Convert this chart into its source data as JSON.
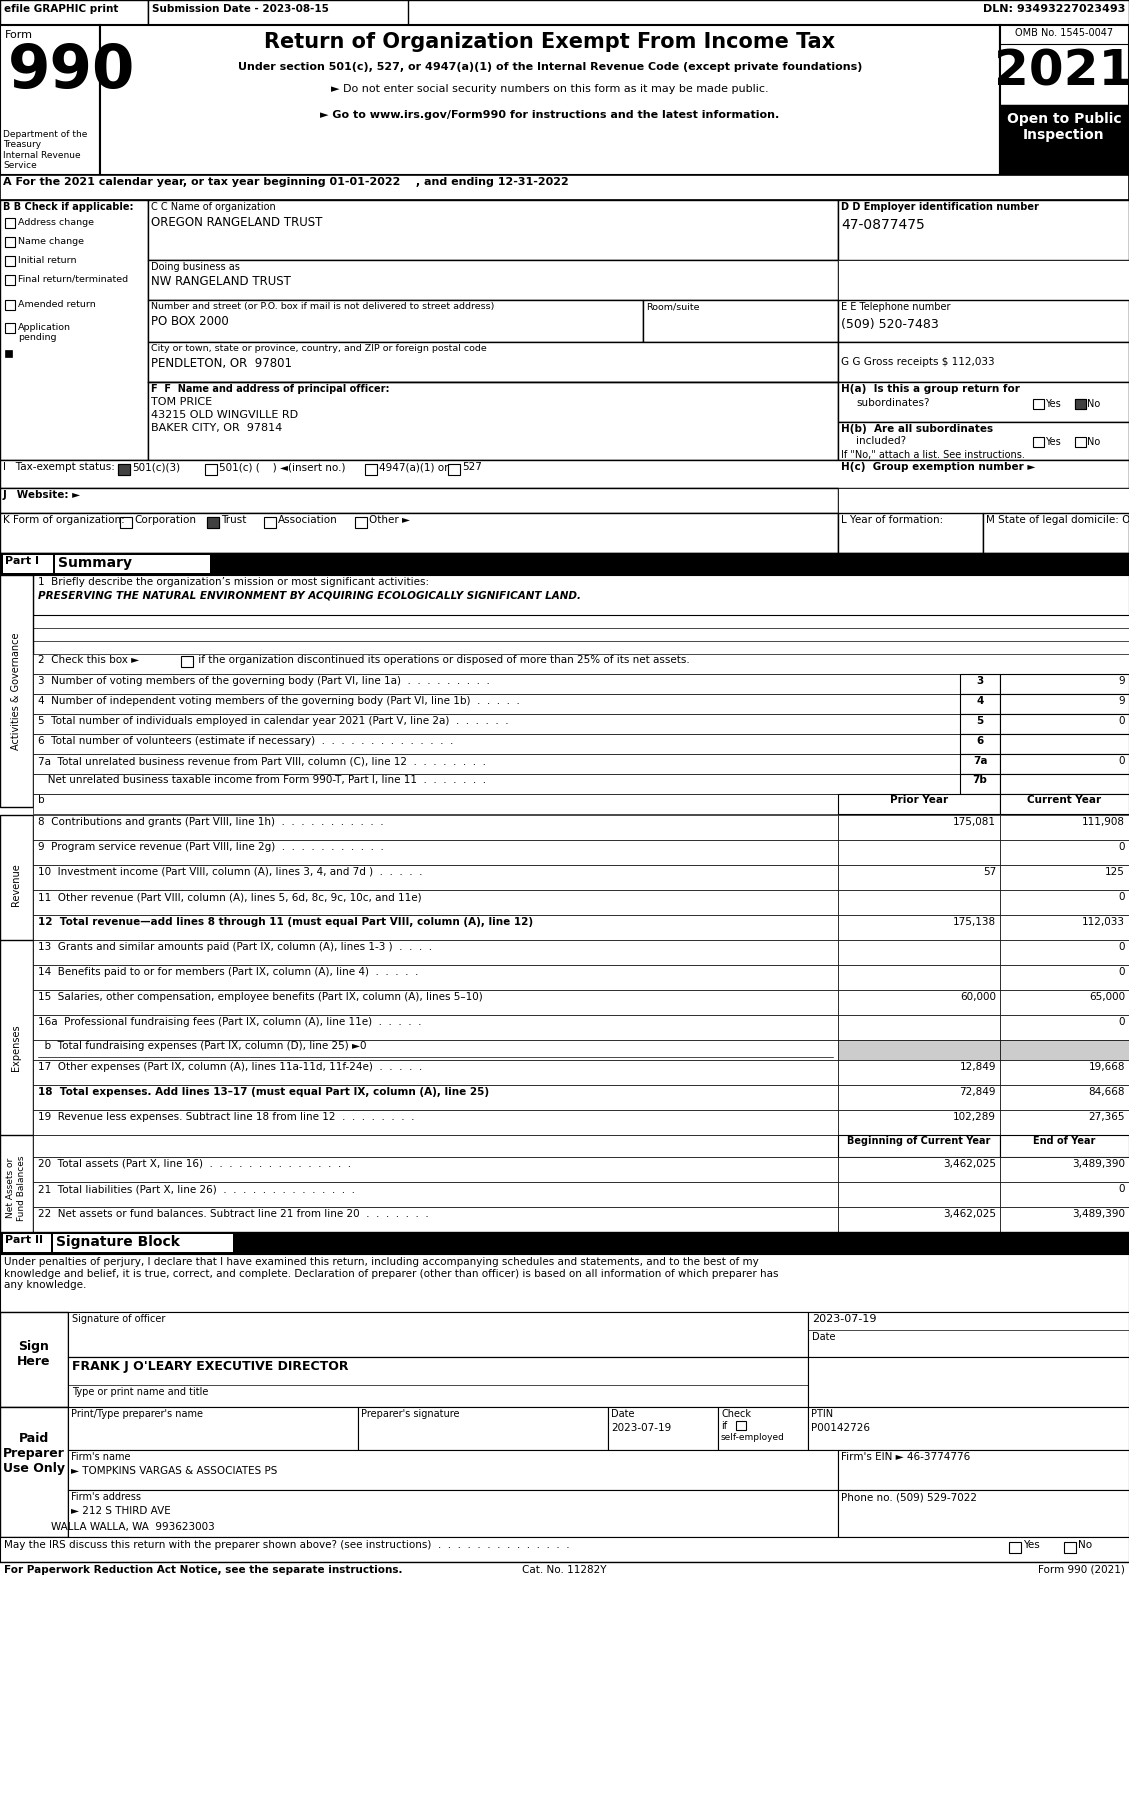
{
  "header_efile": "efile GRAPHIC print",
  "header_submission": "Submission Date - 2023-08-15",
  "header_dln": "DLN: 93493227023493",
  "title": "Return of Organization Exempt From Income Tax",
  "subtitle1": "Under section 501(c), 527, or 4947(a)(1) of the Internal Revenue Code (except private foundations)",
  "subtitle2": "► Do not enter social security numbers on this form as it may be made public.",
  "subtitle3": "► Go to www.irs.gov/Form990 for instructions and the latest information.",
  "omb": "OMB No. 1545-0047",
  "year": "2021",
  "open_public": "Open to Public\nInspection",
  "dept": "Department of the\nTreasury\nInternal Revenue\nService",
  "a_label": "A For the 2021 calendar year, or tax year beginning 01-01-2022    , and ending 12-31-2022",
  "b_label": "B Check if applicable:",
  "check_items": [
    "Address change",
    "Name change",
    "Initial return",
    "Final return/terminated",
    "Amended return",
    "Application\npending"
  ],
  "c_label": "C Name of organization",
  "org_name": "OREGON RANGELAND TRUST",
  "dba_label": "Doing business as",
  "dba_name": "NW RANGELAND TRUST",
  "street_label": "Number and street (or P.O. box if mail is not delivered to street address)",
  "street_value": "PO BOX 2000",
  "room_label": "Room/suite",
  "city_label": "City or town, state or province, country, and ZIP or foreign postal code",
  "city_value": "PENDLETON, OR  97801",
  "d_label": "D Employer identification number",
  "ein": "47-0877475",
  "e_label": "E Telephone number",
  "phone": "(509) 520-7483",
  "g_label": "G Gross receipts $ 112,033",
  "f_label": "F  Name and address of principal officer:",
  "officer_name": "TOM PRICE",
  "officer_addr1": "43215 OLD WINGVILLE RD",
  "officer_addr2": "BAKER CITY, OR  97814",
  "ha_label": "H(a)  Is this a group return for",
  "ha_sub": "subordinates?",
  "hb_line1": "H(b)  Are all subordinates",
  "hb_line2": "included?",
  "hb_note": "If \"No,\" attach a list. See instructions.",
  "hc_label": "H(c)  Group exemption number ►",
  "i_501c3": "501(c)(3)",
  "i_501c": "501(c) (    ) ◄(insert no.)",
  "i_4947": "4947(a)(1) or",
  "i_527": "527",
  "k_corp": "Corporation",
  "k_trust": "Trust",
  "k_assoc": "Association",
  "k_other": "Other ►",
  "l_label": "L Year of formation:",
  "m_label": "M State of legal domicile: OR",
  "part1_label": "Part I",
  "part1_title": "Summary",
  "line1_label": "1  Briefly describe the organization’s mission or most significant activities:",
  "line1_value": "PRESERVING THE NATURAL ENVIRONMENT BY ACQUIRING ECOLOGICALLY SIGNIFICANT LAND.",
  "line2_text": "2  Check this box ►",
  "line2_rest": " if the organization discontinued its operations or disposed of more than 25% of its net assets.",
  "line3_text": "3  Number of voting members of the governing body (Part VI, line 1a)  .  .  .  .  .  .  .  .  .",
  "line3_num": "3",
  "line3_val": "9",
  "line4_text": "4  Number of independent voting members of the governing body (Part VI, line 1b)  .  .  .  .  .",
  "line4_num": "4",
  "line4_val": "9",
  "line5_text": "5  Total number of individuals employed in calendar year 2021 (Part V, line 2a)  .  .  .  .  .  .",
  "line5_num": "5",
  "line5_val": "0",
  "line6_text": "6  Total number of volunteers (estimate if necessary)  .  .  .  .  .  .  .  .  .  .  .  .  .  .",
  "line6_num": "6",
  "line6_val": "",
  "line7a_text": "7a  Total unrelated business revenue from Part VIII, column (C), line 12  .  .  .  .  .  .  .  .",
  "line7a_num": "7a",
  "line7a_val": "0",
  "line7b_text": "   Net unrelated business taxable income from Form 990-T, Part I, line 11  .  .  .  .  .  .  .",
  "line7b_num": "7b",
  "col_prior": "Prior Year",
  "col_current": "Current Year",
  "line8_text": "8  Contributions and grants (Part VIII, line 1h)  .  .  .  .  .  .  .  .  .  .  .",
  "line8_prior": "175,081",
  "line8_curr": "111,908",
  "line9_text": "9  Program service revenue (Part VIII, line 2g)  .  .  .  .  .  .  .  .  .  .  .",
  "line9_prior": "",
  "line9_curr": "0",
  "line10_text": "10  Investment income (Part VIII, column (A), lines 3, 4, and 7d )  .  .  .  .  .",
  "line10_prior": "57",
  "line10_curr": "125",
  "line11_text": "11  Other revenue (Part VIII, column (A), lines 5, 6d, 8c, 9c, 10c, and 11e)",
  "line11_prior": "",
  "line11_curr": "0",
  "line12_text": "12  Total revenue—add lines 8 through 11 (must equal Part VIII, column (A), line 12)",
  "line12_prior": "175,138",
  "line12_curr": "112,033",
  "line13_text": "13  Grants and similar amounts paid (Part IX, column (A), lines 1-3 )  .  .  .  .",
  "line13_prior": "",
  "line13_curr": "0",
  "line14_text": "14  Benefits paid to or for members (Part IX, column (A), line 4)  .  .  .  .  .",
  "line14_prior": "",
  "line14_curr": "0",
  "line15_text": "15  Salaries, other compensation, employee benefits (Part IX, column (A), lines 5–10)",
  "line15_prior": "60,000",
  "line15_curr": "65,000",
  "line16a_text": "16a  Professional fundraising fees (Part IX, column (A), line 11e)  .  .  .  .  .",
  "line16a_prior": "",
  "line16a_curr": "0",
  "line16b_text": "  b  Total fundraising expenses (Part IX, column (D), line 25) ►0",
  "line17_text": "17  Other expenses (Part IX, column (A), lines 11a-11d, 11f-24e)  .  .  .  .  .",
  "line17_prior": "12,849",
  "line17_curr": "19,668",
  "line18_text": "18  Total expenses. Add lines 13–17 (must equal Part IX, column (A), line 25)",
  "line18_prior": "72,849",
  "line18_curr": "84,668",
  "line19_text": "19  Revenue less expenses. Subtract line 18 from line 12  .  .  .  .  .  .  .  .",
  "line19_prior": "102,289",
  "line19_curr": "27,365",
  "col_begin": "Beginning of Current Year",
  "col_end": "End of Year",
  "line20_text": "20  Total assets (Part X, line 16)  .  .  .  .  .  .  .  .  .  .  .  .  .  .  .",
  "line20_begin": "3,462,025",
  "line20_end": "3,489,390",
  "line21_text": "21  Total liabilities (Part X, line 26)  .  .  .  .  .  .  .  .  .  .  .  .  .  .",
  "line21_begin": "",
  "line21_end": "0",
  "line22_text": "22  Net assets or fund balances. Subtract line 21 from line 20  .  .  .  .  .  .  .",
  "line22_begin": "3,462,025",
  "line22_end": "3,489,390",
  "part2_label": "Part II",
  "part2_title": "Signature Block",
  "sig_perjury": "Under penalties of perjury, I declare that I have examined this return, including accompanying schedules and statements, and to the best of my\nknowledge and belief, it is true, correct, and complete. Declaration of preparer (other than officer) is based on all information of which preparer has\nany knowledge.",
  "sig_label": "Signature of officer",
  "sig_date_val": "2023-07-19",
  "sig_date_label": "Date",
  "officer_sign": "FRANK J O'LEARY EXECUTIVE DIRECTOR",
  "officer_title_label": "Type or print name and title",
  "preparer_name_label": "Print/Type preparer's name",
  "preparer_sig_label": "Preparer's signature",
  "preparer_date_label": "Date",
  "preparer_date_val": "2023-07-19",
  "preparer_check_label": "Check",
  "preparer_if_label": "if",
  "preparer_self_label": "self-employed",
  "ptin_label": "PTIN",
  "ptin_val": "P00142726",
  "firm_name_label": "Firm's name",
  "firm_name_val": "► TOMPKINS VARGAS & ASSOCIATES PS",
  "firm_ein_label": "Firm's EIN ►",
  "firm_ein_val": "46-3774776",
  "firm_addr_label": "Firm's address",
  "firm_addr_val": "► 212 S THIRD AVE",
  "firm_city_val": "WALLA WALLA, WA  993623003",
  "phone_no_label": "Phone no.",
  "phone_no_val": "(509) 529-7022",
  "may_discuss": "May the IRS discuss this return with the preparer shown above? (see instructions)",
  "footer1": "For Paperwork Reduction Act Notice, see the separate instructions.",
  "footer_cat": "Cat. No. 11282Y",
  "footer_form": "Form 990 (2021)",
  "sidebar_activities": "Activities & Governance",
  "sidebar_revenue": "Revenue",
  "sidebar_expenses": "Expenses",
  "sidebar_net": "Net Assets or\nFund Balances"
}
